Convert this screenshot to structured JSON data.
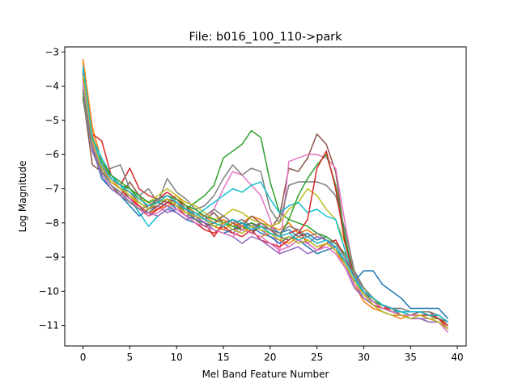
{
  "chart_data": {
    "type": "line",
    "title": "File: b016_100_110->park",
    "xlabel": "Mel Band Feature Number",
    "ylabel": "Log Magnitude",
    "xlim": [
      -1.95,
      40.95
    ],
    "ylim": [
      -11.6,
      -2.85
    ],
    "x_ticks": [
      0,
      5,
      10,
      15,
      20,
      25,
      30,
      35,
      40
    ],
    "y_ticks": [
      -3,
      -4,
      -5,
      -6,
      -7,
      -8,
      -9,
      -10,
      -11
    ],
    "x": [
      0,
      1,
      2,
      3,
      4,
      5,
      6,
      7,
      8,
      9,
      10,
      11,
      12,
      13,
      14,
      15,
      16,
      17,
      18,
      19,
      20,
      21,
      22,
      23,
      24,
      25,
      26,
      27,
      28,
      29,
      30,
      31,
      32,
      33,
      34,
      35,
      36,
      37,
      38,
      39
    ],
    "grid": false,
    "series": [
      {
        "color": "#1f77b4",
        "values": [
          -3.6,
          -5.5,
          -6.5,
          -6.8,
          -7.0,
          -7.2,
          -7.5,
          -7.7,
          -7.5,
          -7.3,
          -7.6,
          -7.8,
          -7.9,
          -8.0,
          -8.1,
          -8.2,
          -8.0,
          -8.1,
          -8.2,
          -8.0,
          -8.1,
          -8.3,
          -8.2,
          -8.4,
          -8.3,
          -8.5,
          -8.4,
          -8.6,
          -9.0,
          -9.6,
          -10.1,
          -10.3,
          -10.4,
          -10.5,
          -10.6,
          -10.6,
          -10.6,
          -10.7,
          -10.7,
          -10.9
        ]
      },
      {
        "color": "#ff7f0e",
        "values": [
          -3.2,
          -5.2,
          -6.2,
          -6.7,
          -7.0,
          -7.1,
          -7.3,
          -7.4,
          -7.6,
          -7.4,
          -7.2,
          -7.5,
          -7.7,
          -7.8,
          -8.0,
          -7.9,
          -8.1,
          -8.0,
          -7.8,
          -7.9,
          -8.1,
          -8.2,
          -8.0,
          -8.3,
          -8.2,
          -8.4,
          -8.5,
          -8.7,
          -9.1,
          -9.5,
          -9.9,
          -10.2,
          -10.5,
          -10.6,
          -10.6,
          -10.7,
          -10.7,
          -10.8,
          -10.8,
          -11.0
        ]
      },
      {
        "color": "#2ca02c",
        "values": [
          -3.5,
          -5.6,
          -6.4,
          -6.6,
          -6.9,
          -7.0,
          -7.3,
          -7.5,
          -7.4,
          -7.3,
          -7.5,
          -7.6,
          -7.4,
          -7.2,
          -6.9,
          -6.1,
          -5.9,
          -5.7,
          -5.3,
          -5.5,
          -6.8,
          -7.7,
          -7.9,
          -8.0,
          -8.1,
          -8.3,
          -8.4,
          -8.6,
          -8.9,
          -9.4,
          -9.9,
          -10.2,
          -10.4,
          -10.5,
          -10.6,
          -10.6,
          -10.6,
          -10.7,
          -10.8,
          -11.0
        ]
      },
      {
        "color": "#d62728",
        "values": [
          -4.1,
          -5.4,
          -5.6,
          -6.6,
          -6.9,
          -6.4,
          -7.0,
          -7.2,
          -7.3,
          -7.1,
          -7.3,
          -7.6,
          -7.8,
          -8.0,
          -8.4,
          -8.0,
          -8.2,
          -8.1,
          -8.3,
          -8.0,
          -8.2,
          -8.4,
          -8.3,
          -8.2,
          -8.6,
          -8.8,
          -8.6,
          -8.5,
          -9.0,
          -9.6,
          -10.0,
          -10.4,
          -10.5,
          -10.5,
          -10.7,
          -10.7,
          -10.6,
          -10.6,
          -10.8,
          -11.1
        ]
      },
      {
        "color": "#9467bd",
        "values": [
          -3.8,
          -5.7,
          -6.5,
          -6.9,
          -7.1,
          -7.3,
          -7.4,
          -7.6,
          -7.5,
          -7.7,
          -7.6,
          -7.8,
          -7.7,
          -7.9,
          -8.1,
          -8.2,
          -8.3,
          -8.1,
          -8.0,
          -8.2,
          -8.4,
          -8.5,
          -8.7,
          -8.5,
          -8.6,
          -8.4,
          -8.5,
          -8.8,
          -9.2,
          -9.8,
          -10.2,
          -10.4,
          -10.6,
          -10.7,
          -10.7,
          -10.8,
          -10.8,
          -10.8,
          -10.9,
          -11.1
        ]
      },
      {
        "color": "#8c564b",
        "values": [
          -4.3,
          -6.3,
          -6.5,
          -6.9,
          -7.2,
          -6.8,
          -7.2,
          -7.6,
          -7.3,
          -7.4,
          -7.3,
          -7.5,
          -7.8,
          -7.9,
          -7.7,
          -8.0,
          -7.9,
          -8.1,
          -7.8,
          -8.0,
          -8.2,
          -7.8,
          -6.4,
          -6.5,
          -6.1,
          -5.4,
          -5.7,
          -6.5,
          -8.5,
          -9.6,
          -10.0,
          -10.3,
          -10.5,
          -10.6,
          -10.6,
          -10.7,
          -10.6,
          -10.7,
          -10.8,
          -11.0
        ]
      },
      {
        "color": "#e377c2",
        "values": [
          -3.9,
          -5.8,
          -6.3,
          -6.8,
          -7.0,
          -7.2,
          -7.6,
          -7.8,
          -7.5,
          -7.3,
          -7.4,
          -7.7,
          -7.8,
          -8.0,
          -7.6,
          -7.0,
          -6.5,
          -6.6,
          -6.9,
          -7.2,
          -7.9,
          -8.9,
          -6.2,
          -6.1,
          -6.0,
          -6.0,
          -6.1,
          -6.4,
          -8.0,
          -9.5,
          -10.0,
          -10.4,
          -10.6,
          -10.7,
          -10.7,
          -10.8,
          -10.8,
          -10.9,
          -10.9,
          -11.2
        ]
      },
      {
        "color": "#7f7f7f",
        "values": [
          -4.4,
          -5.9,
          -6.6,
          -6.4,
          -6.3,
          -7.0,
          -7.2,
          -7.0,
          -7.4,
          -6.7,
          -7.1,
          -7.3,
          -7.6,
          -7.5,
          -7.2,
          -6.7,
          -6.3,
          -6.6,
          -6.4,
          -6.5,
          -7.6,
          -8.0,
          -6.9,
          -6.8,
          -6.8,
          -6.8,
          -6.9,
          -7.2,
          -8.2,
          -9.4,
          -9.9,
          -10.2,
          -10.4,
          -10.5,
          -10.5,
          -10.6,
          -10.6,
          -10.7,
          -10.7,
          -10.9
        ]
      },
      {
        "color": "#bcbd22",
        "values": [
          -4.0,
          -5.6,
          -6.3,
          -6.7,
          -6.9,
          -7.1,
          -7.3,
          -7.4,
          -7.2,
          -7.0,
          -7.2,
          -7.4,
          -7.5,
          -7.7,
          -7.9,
          -7.8,
          -7.6,
          -7.7,
          -7.9,
          -8.0,
          -8.1,
          -8.0,
          -7.6,
          -7.4,
          -7.0,
          -7.2,
          -7.6,
          -7.9,
          -8.6,
          -9.5,
          -9.9,
          -10.2,
          -10.5,
          -10.6,
          -10.7,
          -10.7,
          -10.7,
          -10.8,
          -10.8,
          -11.0
        ]
      },
      {
        "color": "#17becf",
        "values": [
          -3.7,
          -5.5,
          -6.1,
          -6.6,
          -6.9,
          -7.3,
          -7.7,
          -8.1,
          -7.8,
          -7.6,
          -7.4,
          -7.6,
          -7.8,
          -7.6,
          -7.4,
          -7.2,
          -7.0,
          -7.1,
          -6.9,
          -6.8,
          -7.3,
          -7.7,
          -7.5,
          -7.4,
          -7.7,
          -7.6,
          -7.8,
          -7.9,
          -8.8,
          -9.6,
          -10.1,
          -10.3,
          -10.5,
          -10.6,
          -10.6,
          -10.7,
          -10.7,
          -10.7,
          -10.8,
          -11.0
        ]
      },
      {
        "color": "#1f77b4",
        "values": [
          -3.5,
          -5.8,
          -6.7,
          -7.0,
          -7.2,
          -7.5,
          -7.8,
          -7.6,
          -7.4,
          -7.5,
          -7.7,
          -7.9,
          -8.0,
          -8.1,
          -8.2,
          -8.3,
          -8.2,
          -8.0,
          -8.1,
          -8.3,
          -8.4,
          -8.6,
          -8.4,
          -8.5,
          -8.7,
          -8.9,
          -8.8,
          -8.7,
          -9.2,
          -9.7,
          -9.4,
          -9.4,
          -9.8,
          -10.0,
          -10.2,
          -10.5,
          -10.5,
          -10.5,
          -10.5,
          -10.8
        ]
      },
      {
        "color": "#ff7f0e",
        "values": [
          -3.3,
          -5.4,
          -6.4,
          -6.8,
          -7.0,
          -7.2,
          -7.5,
          -7.7,
          -7.6,
          -7.5,
          -7.4,
          -7.6,
          -7.7,
          -7.9,
          -8.1,
          -8.2,
          -8.0,
          -8.1,
          -8.3,
          -8.4,
          -8.3,
          -8.5,
          -8.6,
          -8.4,
          -8.5,
          -8.7,
          -8.6,
          -8.8,
          -9.3,
          -9.8,
          -10.3,
          -10.5,
          -10.6,
          -10.7,
          -10.8,
          -10.7,
          -10.7,
          -10.8,
          -10.9,
          -11.1
        ]
      },
      {
        "color": "#2ca02c",
        "values": [
          -4.2,
          -5.7,
          -6.2,
          -6.6,
          -6.8,
          -7.0,
          -7.2,
          -7.4,
          -7.3,
          -7.2,
          -7.3,
          -7.5,
          -7.6,
          -7.8,
          -7.9,
          -8.0,
          -8.1,
          -8.2,
          -8.0,
          -8.1,
          -8.3,
          -8.4,
          -7.9,
          -7.2,
          -6.7,
          -6.3,
          -6.0,
          -6.9,
          -8.4,
          -9.6,
          -10.0,
          -10.3,
          -10.4,
          -10.5,
          -10.6,
          -10.6,
          -10.6,
          -10.7,
          -10.8,
          -11.0
        ]
      },
      {
        "color": "#d62728",
        "values": [
          -3.8,
          -5.6,
          -6.4,
          -6.8,
          -7.0,
          -7.3,
          -7.5,
          -7.8,
          -7.6,
          -7.4,
          -7.5,
          -7.8,
          -8.0,
          -8.2,
          -8.3,
          -8.1,
          -8.3,
          -8.4,
          -8.2,
          -8.5,
          -8.6,
          -8.7,
          -8.5,
          -8.3,
          -7.9,
          -6.4,
          -5.9,
          -7.0,
          -8.6,
          -9.6,
          -10.0,
          -10.2,
          -10.4,
          -10.6,
          -10.7,
          -10.8,
          -10.7,
          -10.7,
          -10.8,
          -11.0
        ]
      },
      {
        "color": "#9467bd",
        "values": [
          -4.0,
          -5.9,
          -6.6,
          -7.0,
          -7.2,
          -7.4,
          -7.6,
          -7.7,
          -7.8,
          -7.6,
          -7.7,
          -7.9,
          -7.8,
          -8.0,
          -8.2,
          -8.3,
          -8.4,
          -8.6,
          -8.4,
          -8.5,
          -8.7,
          -8.9,
          -8.8,
          -8.7,
          -8.9,
          -8.8,
          -8.7,
          -8.9,
          -9.3,
          -9.9,
          -10.2,
          -10.4,
          -10.6,
          -10.7,
          -10.7,
          -10.8,
          -10.8,
          -10.9,
          -10.9,
          -11.1
        ]
      },
      {
        "color": "#8c564b",
        "values": [
          -3.6,
          -5.5,
          -6.3,
          -6.7,
          -6.9,
          -7.1,
          -7.4,
          -7.6,
          -7.5,
          -7.3,
          -7.4,
          -7.6,
          -7.9,
          -8.1,
          -8.0,
          -7.8,
          -8.0,
          -8.2,
          -8.3,
          -8.1,
          -8.2,
          -8.4,
          -8.5,
          -8.3,
          -8.4,
          -8.6,
          -8.5,
          -8.7,
          -9.1,
          -9.6,
          -10.0,
          -10.2,
          -10.4,
          -10.5,
          -10.6,
          -10.6,
          -10.6,
          -10.7,
          -10.8,
          -10.9
        ]
      },
      {
        "color": "#e377c2",
        "values": [
          -3.9,
          -5.7,
          -6.5,
          -6.9,
          -7.1,
          -7.3,
          -7.6,
          -7.8,
          -7.7,
          -7.5,
          -7.6,
          -7.8,
          -8.0,
          -8.1,
          -8.2,
          -8.3,
          -8.4,
          -8.2,
          -8.3,
          -8.4,
          -8.6,
          -8.8,
          -8.7,
          -8.5,
          -8.6,
          -8.8,
          -8.7,
          -8.9,
          -9.3,
          -9.8,
          -10.1,
          -10.3,
          -10.5,
          -10.6,
          -10.7,
          -10.7,
          -10.7,
          -10.8,
          -10.9,
          -11.2
        ]
      },
      {
        "color": "#7f7f7f",
        "values": [
          -4.1,
          -5.8,
          -6.5,
          -6.9,
          -7.1,
          -7.4,
          -7.6,
          -7.5,
          -7.3,
          -7.2,
          -7.4,
          -7.7,
          -7.9,
          -7.8,
          -7.6,
          -7.8,
          -8.0,
          -7.9,
          -8.1,
          -8.0,
          -8.2,
          -8.3,
          -8.1,
          -8.2,
          -8.4,
          -8.3,
          -8.5,
          -8.6,
          -9.0,
          -9.5,
          -9.9,
          -10.2,
          -10.4,
          -10.5,
          -10.5,
          -10.6,
          -10.6,
          -10.6,
          -10.7,
          -10.9
        ]
      },
      {
        "color": "#bcbd22",
        "values": [
          -3.7,
          -5.6,
          -6.4,
          -6.8,
          -7.0,
          -7.2,
          -7.4,
          -7.6,
          -7.4,
          -7.3,
          -7.5,
          -7.7,
          -7.8,
          -7.9,
          -8.1,
          -8.0,
          -8.2,
          -8.3,
          -8.1,
          -8.2,
          -8.3,
          -8.5,
          -8.4,
          -8.6,
          -8.5,
          -8.7,
          -8.6,
          -8.8,
          -9.2,
          -9.7,
          -10.1,
          -10.4,
          -10.6,
          -10.7,
          -10.7,
          -10.8,
          -10.7,
          -10.8,
          -10.9,
          -11.1
        ]
      },
      {
        "color": "#17becf",
        "values": [
          -3.4,
          -5.5,
          -6.3,
          -6.7,
          -6.9,
          -7.1,
          -7.3,
          -7.5,
          -7.4,
          -7.2,
          -7.4,
          -7.6,
          -7.7,
          -7.9,
          -8.0,
          -8.1,
          -7.9,
          -8.0,
          -8.2,
          -8.1,
          -8.3,
          -8.4,
          -8.3,
          -8.5,
          -8.4,
          -8.6,
          -8.5,
          -8.7,
          -9.1,
          -9.6,
          -10.0,
          -10.2,
          -10.4,
          -10.5,
          -10.6,
          -10.6,
          -10.6,
          -10.7,
          -10.7,
          -10.9
        ]
      }
    ]
  }
}
